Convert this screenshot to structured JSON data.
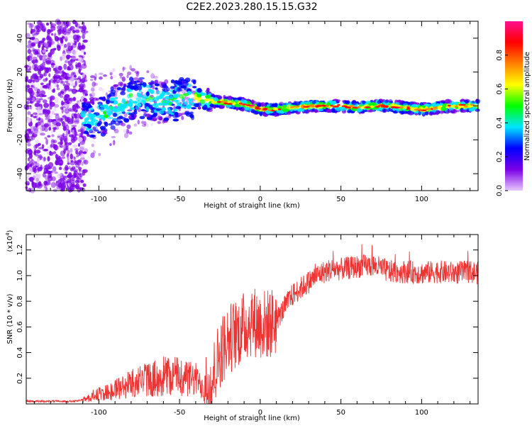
{
  "title": "C2E2.2023.280.15.15.G32",
  "chart_data": [
    {
      "type": "heatmap",
      "xlabel": "Height of straight line (km)",
      "ylabel": "Frequency (Hz)",
      "xlim": [
        -145,
        135
      ],
      "ylim": [
        -50,
        50
      ],
      "x_ticks": [
        -100,
        -50,
        0,
        50,
        100
      ],
      "y_ticks": [
        -40,
        -20,
        0,
        20,
        40
      ],
      "colorbar": {
        "label": "Normalized spectral amplitude",
        "range": [
          0,
          1
        ],
        "ticks": [
          "0.0",
          "0.2",
          "0.4",
          "0.6",
          "0.8"
        ],
        "colormap": [
          "#e8c8ff",
          "#7a00e6",
          "#0000ff",
          "#00e5ff",
          "#00ff00",
          "#ffff00",
          "#ff8000",
          "#ff0000",
          "#ff1090"
        ]
      },
      "grid": false,
      "ridge": {
        "x": [
          -110,
          -100,
          -90,
          -80,
          -70,
          -60,
          -50,
          -40,
          -30,
          -20,
          -10,
          0,
          10,
          20,
          30,
          40,
          50,
          60,
          70,
          80,
          90,
          100,
          110,
          120,
          130
        ],
        "y": [
          -8,
          -7,
          0,
          4,
          5,
          2,
          4,
          5,
          3,
          2,
          1,
          -2,
          -2,
          -1,
          0,
          0,
          0,
          -1,
          0,
          0,
          -1,
          -2,
          -1,
          0,
          0
        ]
      }
    },
    {
      "type": "line",
      "xlabel": "Height of straight line (km)",
      "ylabel": "SNR (10 * v/v)",
      "yscale_label": "(x10",
      "yscale_exp": "4",
      "xlim": [
        -145,
        135
      ],
      "ylim": [
        0,
        1.32
      ],
      "x_ticks": [
        -100,
        -50,
        0,
        50,
        100
      ],
      "y_ticks": [
        "0.2",
        "0.4",
        "0.6",
        "0.8",
        "1.0",
        "1.2"
      ],
      "line_color": "#ee3333",
      "series": [
        {
          "x": [
            -145,
            -130,
            -115,
            -110,
            -105,
            -100,
            -95,
            -90,
            -85,
            -80,
            -75,
            -70,
            -65,
            -60,
            -55,
            -50,
            -45,
            -40,
            -35,
            -30,
            -25,
            -20,
            -15,
            -10,
            -5,
            0,
            5,
            10,
            15,
            20,
            25,
            30,
            35,
            40,
            45,
            50,
            60,
            70,
            80,
            90,
            100,
            110,
            120,
            130,
            135
          ],
          "y": [
            0.02,
            0.02,
            0.02,
            0.03,
            0.05,
            0.07,
            0.08,
            0.1,
            0.12,
            0.15,
            0.17,
            0.17,
            0.18,
            0.2,
            0.2,
            0.2,
            0.18,
            0.17,
            0.12,
            0.18,
            0.4,
            0.5,
            0.55,
            0.6,
            0.65,
            0.62,
            0.62,
            0.65,
            0.75,
            0.85,
            0.9,
            0.95,
            1.0,
            1.03,
            1.05,
            1.05,
            1.07,
            1.08,
            1.03,
            1.03,
            1.02,
            1.03,
            1.02,
            1.03,
            1.02
          ]
        }
      ]
    }
  ]
}
